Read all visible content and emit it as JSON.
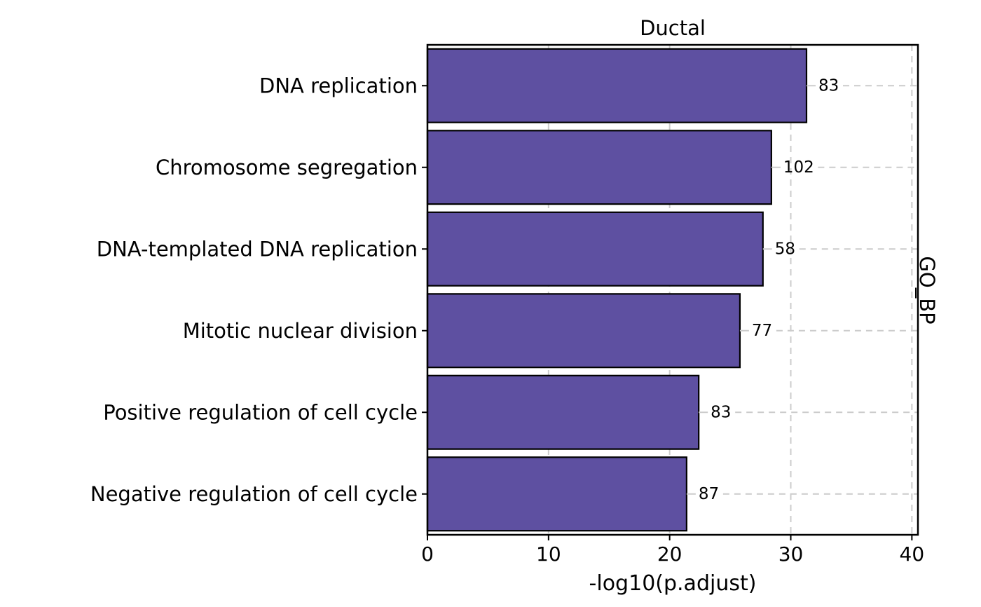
{
  "chart_data": {
    "type": "bar",
    "orientation": "horizontal",
    "title": "Ductal",
    "facet_label": "GO_BP",
    "xlabel": "-log10(p.adjust)",
    "ylabel": "",
    "xlim": [
      0,
      40.5
    ],
    "xticks": [
      0,
      10,
      20,
      30,
      40
    ],
    "grid": true,
    "bar_color": "#5e50a1",
    "categories": [
      "DNA replication",
      "Chromosome segregation",
      "DNA-templated DNA replication",
      "Mitotic nuclear division",
      "Positive regulation of cell cycle",
      "Negative regulation of cell cycle"
    ],
    "values": [
      31.3,
      28.4,
      27.7,
      25.8,
      22.4,
      21.4
    ],
    "counts": [
      "83",
      "102",
      "58",
      "77",
      "83",
      "87"
    ]
  }
}
